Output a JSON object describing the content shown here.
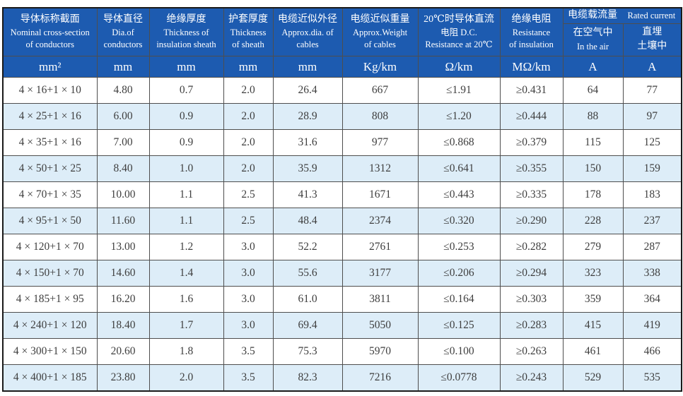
{
  "colors": {
    "header_bg": "#1d5bb0",
    "header_text": "#ffffff",
    "alt_row_bg": "#ddedf8",
    "row_bg": "#ffffff",
    "grid_border": "#4e4e4e",
    "outer_border": "#1a1a1a",
    "body_text": "#3e3e3e"
  },
  "table": {
    "columns": [
      {
        "lines": [
          "导体标称截面",
          "Nominal cross-section",
          "of conductors"
        ],
        "unit": "mm²"
      },
      {
        "lines": [
          "导体直径",
          "Dia.of",
          "conductors"
        ],
        "unit": "mm"
      },
      {
        "lines": [
          "绝缘厚度",
          "Thickness of",
          "insulation sheath"
        ],
        "unit": "mm"
      },
      {
        "lines": [
          "护套厚度",
          "Thickness",
          "of sheath"
        ],
        "unit": "mm"
      },
      {
        "lines": [
          "电缆近似外径",
          "Approx.dia. of",
          "cables"
        ],
        "unit": "mm"
      },
      {
        "lines": [
          "电缆近似重量",
          "Approx.Weight",
          "of cables"
        ],
        "unit": "Kg/km"
      },
      {
        "lines": [
          "20℃时导体直流",
          "电阻 D.C.",
          "Resistance at 20℃"
        ],
        "unit": "Ω/km"
      },
      {
        "lines": [
          "绝缘电阻",
          "Resistance",
          "of insulation"
        ],
        "unit": "MΩ/km"
      }
    ],
    "rated_current_group": {
      "title_zh": "电缆载流量",
      "title_en": "Rated current",
      "sub_columns": [
        {
          "lines": [
            "在空气中",
            "In the air"
          ],
          "unit": "A"
        },
        {
          "lines": [
            "直埋",
            "土壤中"
          ],
          "unit": "A"
        }
      ]
    },
    "rows": [
      [
        "4 × 16+1 × 10",
        "4.80",
        "0.7",
        "2.0",
        "26.4",
        "667",
        "≤1.91",
        "≥0.431",
        "64",
        "77"
      ],
      [
        "4 × 25+1 × 16",
        "6.00",
        "0.9",
        "2.0",
        "28.9",
        "808",
        "≤1.20",
        "≥0.444",
        "88",
        "97"
      ],
      [
        "4 × 35+1 × 16",
        "7.00",
        "0.9",
        "2.0",
        "31.6",
        "977",
        "≤0.868",
        "≥0.379",
        "115",
        "125"
      ],
      [
        "4 × 50+1 × 25",
        "8.40",
        "1.0",
        "2.0",
        "35.9",
        "1312",
        "≤0.641",
        "≥0.355",
        "150",
        "159"
      ],
      [
        "4 × 70+1 × 35",
        "10.00",
        "1.1",
        "2.5",
        "41.3",
        "1671",
        "≤0.443",
        "≥0.335",
        "178",
        "183"
      ],
      [
        "4 × 95+1 × 50",
        "11.60",
        "1.1",
        "2.5",
        "48.4",
        "2374",
        "≤0.320",
        "≥0.290",
        "228",
        "237"
      ],
      [
        "4 × 120+1 × 70",
        "13.00",
        "1.2",
        "3.0",
        "52.2",
        "2761",
        "≤0.253",
        "≥0.282",
        "279",
        "287"
      ],
      [
        "4 × 150+1 × 70",
        "14.60",
        "1.4",
        "3.0",
        "55.6",
        "3177",
        "≤0.206",
        "≥0.294",
        "323",
        "338"
      ],
      [
        "4 × 185+1 × 95",
        "16.20",
        "1.6",
        "3.0",
        "61.0",
        "3811",
        "≤0.164",
        "≥0.303",
        "359",
        "364"
      ],
      [
        "4 × 240+1 × 120",
        "18.40",
        "1.7",
        "3.0",
        "69.4",
        "5050",
        "≤0.125",
        "≥0.283",
        "415",
        "419"
      ],
      [
        "4 × 300+1 × 150",
        "20.60",
        "1.8",
        "3.5",
        "75.3",
        "5970",
        "≤0.100",
        "≥0.263",
        "461",
        "466"
      ],
      [
        "4 × 400+1 × 185",
        "23.80",
        "2.0",
        "3.5",
        "82.3",
        "7216",
        "≤0.0778",
        "≥0.243",
        "529",
        "535"
      ]
    ]
  }
}
